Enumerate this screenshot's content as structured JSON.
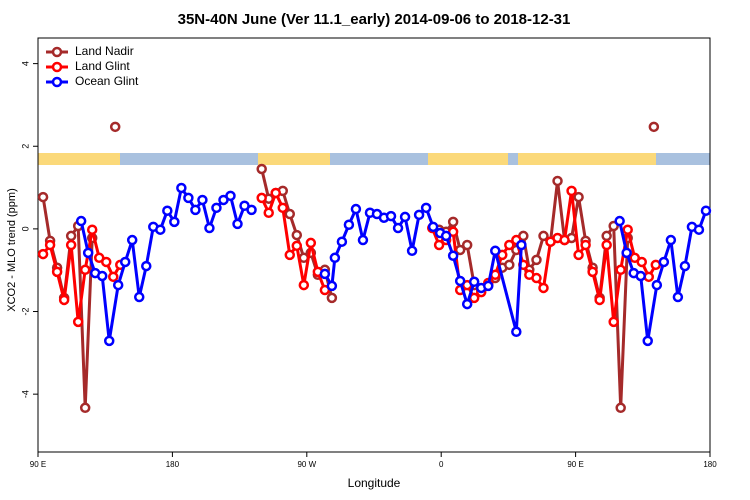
{
  "chart_data": {
    "type": "line",
    "title": "35N-40N June (Ver 11.1_early)   2014-09-06 to 2018-12-31",
    "x_label": "Longitude",
    "y_label": "XCO2 - MLO trend (ppm)",
    "xlim": [
      90,
      540
    ],
    "ylim": [
      -5.4,
      4.62
    ],
    "xticks": [
      {
        "value": 90,
        "label": "90 E"
      },
      {
        "value": 180,
        "label": "180"
      },
      {
        "value": 270,
        "label": "90 W"
      },
      {
        "value": 360,
        "label": "0"
      },
      {
        "value": 450,
        "label": "90 E"
      },
      {
        "value": 540,
        "label": "180"
      }
    ],
    "yticks": [
      -4,
      -2,
      0,
      2,
      4
    ],
    "legend": "top-left",
    "series": [
      {
        "name": "Land Nadir",
        "color": "#a52a2a",
        "x": [
          93.4,
          98.1,
          102.8,
          107.5,
          112.2,
          116.9,
          121.6,
          126.3,
          null,
          141.7,
          null,
          239.8,
          244.5,
          249.2,
          253.9,
          258.6,
          263.3,
          268.0,
          272.7,
          277.4,
          282.1,
          286.8,
          null,
          358.6,
          363.3,
          368.0,
          372.7,
          377.4,
          382.1,
          386.8,
          391.5,
          396.2,
          400.9,
          405.6,
          410.3,
          415.0,
          419.0,
          423.8,
          428.5,
          433.2,
          437.9,
          442.6,
          447.3,
          452.0,
          456.7,
          461.4,
          466.1,
          470.8,
          475.5,
          480.2,
          484.9,
          null,
          502.4
        ],
        "values": [
          0.77,
          -0.29,
          -0.94,
          -1.67,
          -0.17,
          0.07,
          -4.33,
          -0.22,
          null,
          2.47,
          null,
          1.45,
          0.73,
          0.87,
          0.92,
          0.36,
          -0.15,
          -0.7,
          -0.58,
          -1.11,
          -0.99,
          -1.67,
          null,
          -0.02,
          -0.07,
          0.17,
          -0.51,
          -0.39,
          -1.36,
          -1.48,
          -1.36,
          -1.19,
          -0.94,
          -0.87,
          -0.51,
          -0.17,
          -0.99,
          -0.75,
          -0.17,
          -0.31,
          1.16,
          -0.27,
          -0.22,
          0.77,
          -0.29,
          -0.94,
          -1.67,
          -0.17,
          0.07,
          -4.33,
          -0.22,
          null,
          2.47
        ]
      },
      {
        "name": "Land Glint",
        "color": "#ff0000",
        "x": [
          93.4,
          98.1,
          102.8,
          107.5,
          112.2,
          116.9,
          121.6,
          126.3,
          131.0,
          135.7,
          140.4,
          145.1,
          null,
          239.8,
          244.5,
          249.2,
          253.9,
          258.6,
          263.3,
          268.0,
          272.7,
          277.4,
          282.1,
          null,
          354.0,
          358.6,
          363.3,
          368.0,
          372.7,
          377.4,
          382.1,
          386.8,
          391.5,
          396.2,
          400.9,
          405.6,
          410.3,
          415.0,
          419.0,
          423.8,
          428.5,
          433.2,
          437.9,
          442.6,
          447.3,
          452.0,
          456.7,
          461.4,
          466.1,
          470.8,
          475.5,
          480.2,
          484.9,
          489.6,
          494.3,
          499.0,
          503.7
        ],
        "values": [
          -0.61,
          -0.39,
          -1.04,
          -1.72,
          -0.39,
          -2.25,
          -0.99,
          -0.02,
          -0.7,
          -0.8,
          -1.16,
          -0.87,
          null,
          0.75,
          0.39,
          0.87,
          0.51,
          -0.63,
          -0.41,
          -1.36,
          -0.34,
          -1.04,
          -1.48,
          null,
          0.02,
          -0.39,
          -0.27,
          -0.07,
          -1.48,
          -1.36,
          -1.67,
          -1.53,
          -1.31,
          -1.11,
          -0.63,
          -0.39,
          -0.27,
          -0.87,
          -1.11,
          -1.19,
          -1.43,
          -0.31,
          -0.22,
          -0.27,
          0.92,
          -0.63,
          -0.39,
          -1.04,
          -1.72,
          -0.39,
          -2.25,
          -0.99,
          -0.02,
          -0.7,
          -0.8,
          -1.16,
          -0.87
        ]
      },
      {
        "name": "Ocean Glint",
        "color": "#0000ff",
        "x": [
          118.9,
          123.6,
          128.3,
          133.0,
          137.7,
          143.7,
          148.4,
          153.1,
          157.8,
          162.5,
          167.2,
          171.9,
          176.6,
          181.3,
          186.0,
          190.7,
          195.4,
          200.1,
          204.8,
          209.5,
          214.2,
          218.9,
          223.6,
          228.3,
          233.0,
          null,
          282.1,
          286.8,
          288.8,
          293.5,
          298.2,
          302.9,
          307.6,
          312.3,
          317.0,
          321.7,
          326.4,
          331.1,
          335.8,
          340.5,
          345.2,
          349.9,
          354.6,
          359.3,
          363.3,
          368.0,
          372.7,
          377.4,
          382.1,
          386.8,
          391.5,
          396.2,
          410.3,
          413.7,
          null,
          479.5,
          484.2,
          488.9,
          493.6,
          498.3,
          504.4,
          509.1,
          513.8,
          518.5,
          523.2,
          527.9,
          532.6,
          537.3
        ],
        "values": [
          0.19,
          -0.58,
          -1.07,
          -1.14,
          -2.71,
          -1.36,
          -0.8,
          -0.27,
          -1.65,
          -0.9,
          0.05,
          -0.02,
          0.44,
          0.17,
          0.99,
          0.75,
          0.46,
          0.7,
          0.02,
          0.51,
          0.7,
          0.8,
          0.12,
          0.56,
          0.46,
          null,
          -1.09,
          -1.38,
          -0.7,
          -0.31,
          0.1,
          0.48,
          -0.27,
          0.39,
          0.36,
          0.27,
          0.31,
          0.02,
          0.29,
          -0.53,
          0.34,
          0.51,
          0.05,
          -0.1,
          -0.17,
          -0.65,
          -1.26,
          -1.82,
          -1.28,
          -1.43,
          -1.38,
          -0.53,
          -2.49,
          -0.39,
          null,
          0.19,
          -0.58,
          -1.07,
          -1.14,
          -2.71,
          -1.36,
          -0.8,
          -0.27,
          -1.65,
          -0.9,
          0.05,
          -0.02,
          0.44
        ]
      }
    ]
  }
}
